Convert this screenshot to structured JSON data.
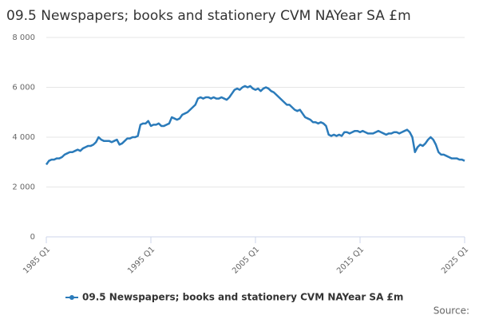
{
  "chart_data": {
    "type": "line",
    "title": "09.5 Newspapers; books and stationery CVM NAYear SA £m",
    "source": "Source:",
    "categories": [
      "1985 Q1",
      null,
      null,
      null,
      null,
      null,
      null,
      null,
      null,
      null,
      null,
      null,
      null,
      null,
      null,
      null,
      null,
      null,
      null,
      null,
      null,
      null,
      null,
      null,
      null,
      null,
      null,
      null,
      null,
      null,
      null,
      null,
      null,
      null,
      null,
      null,
      null,
      null,
      null,
      null,
      "1995 Q1",
      null,
      null,
      null,
      null,
      null,
      null,
      null,
      null,
      null,
      null,
      null,
      null,
      null,
      null,
      null,
      null,
      null,
      null,
      null,
      null,
      null,
      null,
      null,
      null,
      null,
      null,
      null,
      null,
      null,
      null,
      null,
      null,
      null,
      null,
      null,
      null,
      null,
      null,
      null,
      "2005 Q1",
      null,
      null,
      null,
      null,
      null,
      null,
      null,
      null,
      null,
      null,
      null,
      null,
      null,
      null,
      null,
      null,
      null,
      null,
      null,
      null,
      null,
      null,
      null,
      null,
      null,
      null,
      null,
      null,
      null,
      null,
      null,
      null,
      null,
      null,
      null,
      null,
      null,
      null,
      null,
      "2015 Q1",
      null,
      null,
      null,
      null,
      null,
      null,
      null,
      null,
      null,
      null,
      null,
      null,
      null,
      null,
      null,
      null,
      null,
      null,
      null,
      null,
      null,
      null,
      null,
      null,
      null,
      null,
      null,
      null,
      null,
      null,
      null,
      null,
      null,
      null,
      null,
      null,
      null,
      null,
      null,
      "2025 Q1"
    ],
    "series": [
      {
        "name": "09.5 Newspapers; books and stationery CVM NAYear SA £m",
        "color": "#2b7bba",
        "values": [
          2900,
          3050,
          3100,
          3100,
          3150,
          3150,
          3200,
          3300,
          3350,
          3400,
          3400,
          3450,
          3500,
          3450,
          3550,
          3600,
          3650,
          3650,
          3700,
          3800,
          4000,
          3900,
          3850,
          3850,
          3850,
          3800,
          3850,
          3900,
          3700,
          3750,
          3850,
          3950,
          3950,
          4000,
          4000,
          4050,
          4500,
          4550,
          4550,
          4650,
          4450,
          4500,
          4500,
          4550,
          4450,
          4450,
          4500,
          4550,
          4800,
          4750,
          4700,
          4750,
          4900,
          4950,
          5000,
          5100,
          5200,
          5300,
          5550,
          5600,
          5550,
          5600,
          5600,
          5550,
          5600,
          5550,
          5550,
          5600,
          5550,
          5500,
          5600,
          5750,
          5900,
          5950,
          5900,
          6000,
          6050,
          6000,
          6050,
          5950,
          5900,
          5950,
          5850,
          5950,
          6000,
          5950,
          5850,
          5800,
          5700,
          5600,
          5500,
          5400,
          5300,
          5300,
          5200,
          5100,
          5050,
          5100,
          4950,
          4800,
          4750,
          4700,
          4600,
          4600,
          4550,
          4600,
          4550,
          4450,
          4100,
          4050,
          4100,
          4050,
          4100,
          4050,
          4200,
          4200,
          4150,
          4200,
          4250,
          4250,
          4200,
          4250,
          4200,
          4150,
          4150,
          4150,
          4200,
          4250,
          4200,
          4150,
          4100,
          4150,
          4150,
          4200,
          4200,
          4150,
          4200,
          4250,
          4300,
          4200,
          4000,
          3400,
          3600,
          3700,
          3650,
          3750,
          3900,
          4000,
          3900,
          3700,
          3400,
          3300,
          3300,
          3250,
          3200,
          3150,
          3150,
          3150,
          3100,
          3100,
          3050
        ]
      }
    ],
    "ylim": [
      0,
      8000
    ],
    "yticks": [
      0,
      {
        "value": 2000,
        "label": "2 000"
      },
      {
        "value": 4000,
        "label": "4 000"
      },
      {
        "value": 6000,
        "label": "6 000"
      },
      {
        "value": 8000,
        "label": "8 000"
      }
    ],
    "grid": true,
    "legend": "bottom"
  }
}
